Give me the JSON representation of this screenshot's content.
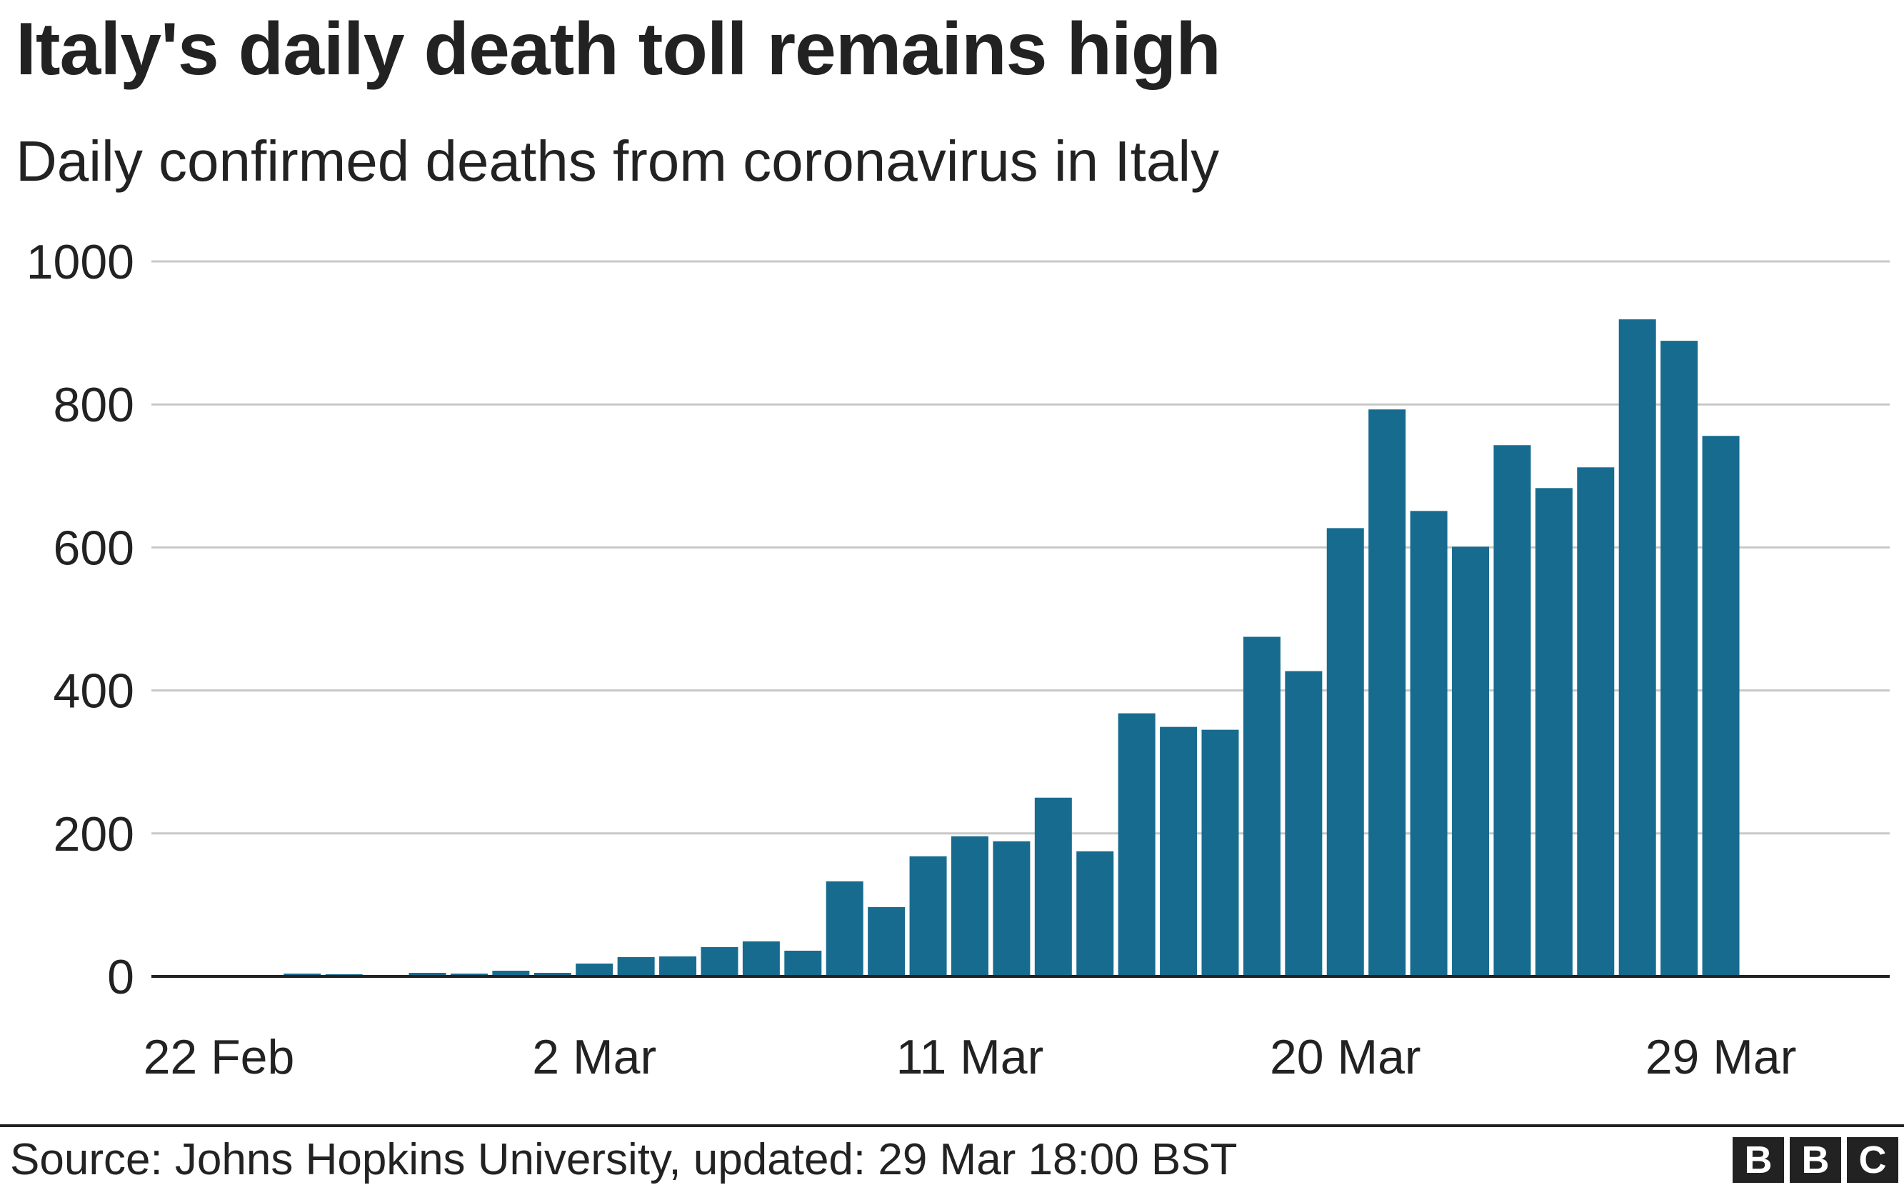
{
  "title": "Italy's daily death toll remains high",
  "subtitle": "Daily confirmed deaths from coronavirus in Italy",
  "source": "Source: Johns Hopkins University, updated:  29 Mar 18:00 BST",
  "logo": [
    "B",
    "B",
    "C"
  ],
  "colors": {
    "bar": "#176b8f",
    "grid": "#c8c8c8",
    "axis": "#222222",
    "text": "#222222"
  },
  "chart_data": {
    "type": "bar",
    "title": "Italy's daily death toll remains high",
    "subtitle": "Daily confirmed deaths from coronavirus in Italy",
    "xlabel": "",
    "ylabel": "",
    "ylim": [
      0,
      1000
    ],
    "yticks": [
      0,
      200,
      400,
      600,
      800,
      1000
    ],
    "xtick_labels": [
      "22 Feb",
      "2 Mar",
      "11 Mar",
      "20 Mar",
      "29 Mar"
    ],
    "grid": true,
    "categories": [
      "21 Feb",
      "22 Feb",
      "23 Feb",
      "24 Feb",
      "25 Feb",
      "26 Feb",
      "27 Feb",
      "28 Feb",
      "29 Feb",
      "1 Mar",
      "2 Mar",
      "3 Mar",
      "4 Mar",
      "5 Mar",
      "6 Mar",
      "7 Mar",
      "8 Mar",
      "9 Mar",
      "10 Mar",
      "11 Mar",
      "12 Mar",
      "13 Mar",
      "14 Mar",
      "15 Mar",
      "16 Mar",
      "17 Mar",
      "18 Mar",
      "19 Mar",
      "20 Mar",
      "21 Mar",
      "22 Mar",
      "23 Mar",
      "24 Mar",
      "25 Mar",
      "26 Mar",
      "27 Mar",
      "28 Mar",
      "29 Mar"
    ],
    "values": [
      1,
      1,
      1,
      4,
      3,
      2,
      5,
      4,
      8,
      5,
      18,
      27,
      28,
      41,
      49,
      36,
      133,
      97,
      168,
      196,
      189,
      250,
      175,
      368,
      349,
      345,
      475,
      427,
      627,
      793,
      651,
      601,
      743,
      683,
      712,
      919,
      889,
      756
    ]
  }
}
